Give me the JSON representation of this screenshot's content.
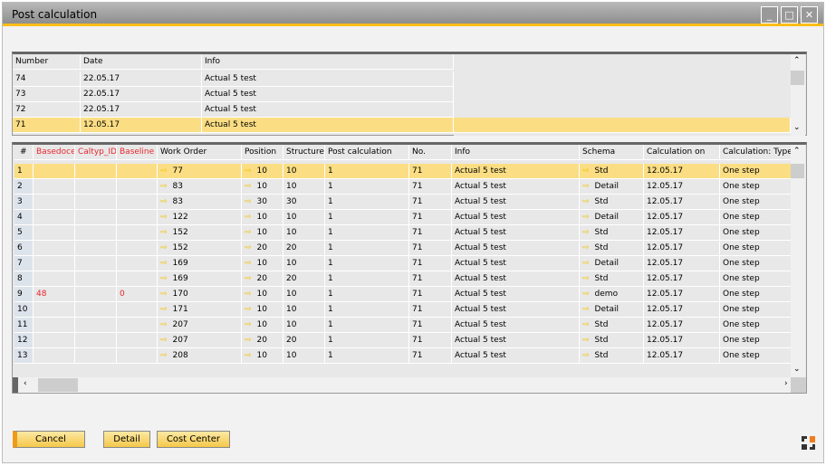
{
  "window": {
    "title": "Post calculation"
  },
  "top_grid": {
    "columns": [
      "Number",
      "Date",
      "Info"
    ],
    "rows": [
      [
        "74",
        "22.05.17",
        "Actual 5 test"
      ],
      [
        "73",
        "22.05.17",
        "Actual 5 test"
      ],
      [
        "72",
        "22.05.17",
        "Actual 5 test"
      ],
      [
        "71",
        "12.05.17",
        "Actual 5 test"
      ]
    ],
    "selected_row": 3
  },
  "bottom_grid": {
    "columns": [
      "#",
      "Basedocer",
      "Caltyp_ID",
      "Baseline",
      "Work Order",
      "Position",
      "Structure",
      "Post calculation",
      "No.",
      "Info",
      "Schema",
      "Calculation on",
      "Calculation: Type"
    ],
    "rows": [
      [
        "1",
        "",
        "",
        "",
        "77",
        "10",
        "10",
        "1",
        "71",
        "Actual 5 test",
        "Std",
        "12.05.17",
        "One step"
      ],
      [
        "2",
        "",
        "",
        "",
        "83",
        "10",
        "10",
        "1",
        "71",
        "Actual 5 test",
        "Detail",
        "12.05.17",
        "One step"
      ],
      [
        "3",
        "",
        "",
        "",
        "83",
        "30",
        "30",
        "1",
        "71",
        "Actual 5 test",
        "Std",
        "12.05.17",
        "One step"
      ],
      [
        "4",
        "",
        "",
        "",
        "122",
        "10",
        "10",
        "1",
        "71",
        "Actual 5 test",
        "Detail",
        "12.05.17",
        "One step"
      ],
      [
        "5",
        "",
        "",
        "",
        "152",
        "10",
        "10",
        "1",
        "71",
        "Actual 5 test",
        "Std",
        "12.05.17",
        "One step"
      ],
      [
        "6",
        "",
        "",
        "",
        "152",
        "20",
        "20",
        "1",
        "71",
        "Actual 5 test",
        "Std",
        "12.05.17",
        "One step"
      ],
      [
        "7",
        "",
        "",
        "",
        "169",
        "10",
        "10",
        "1",
        "71",
        "Actual 5 test",
        "Detail",
        "12.05.17",
        "One step"
      ],
      [
        "8",
        "",
        "",
        "",
        "169",
        "20",
        "20",
        "1",
        "71",
        "Actual 5 test",
        "Std",
        "12.05.17",
        "One step"
      ],
      [
        "9",
        "48",
        "",
        "0",
        "170",
        "10",
        "10",
        "1",
        "71",
        "Actual 5 test",
        "demo",
        "12.05.17",
        "One step"
      ],
      [
        "10",
        "",
        "",
        "",
        "171",
        "10",
        "10",
        "1",
        "71",
        "Actual 5 test",
        "Detail",
        "12.05.17",
        "One step"
      ],
      [
        "11",
        "",
        "",
        "",
        "207",
        "10",
        "10",
        "1",
        "71",
        "Actual 5 test",
        "Std",
        "12.05.17",
        "One step"
      ],
      [
        "12",
        "",
        "",
        "",
        "207",
        "20",
        "20",
        "1",
        "71",
        "Actual 5 test",
        "Std",
        "12.05.17",
        "One step"
      ],
      [
        "13",
        "",
        "",
        "",
        "208",
        "10",
        "10",
        "1",
        "71",
        "Actual 5 test",
        "Std",
        "12.05.17",
        "One step"
      ]
    ],
    "selected_row": 0
  },
  "buttons": {
    "cancel": "Cancel",
    "detail": "Detail",
    "cost_center": "Cost Center"
  },
  "colors": {
    "accent": "#fbbd18",
    "selection": "#fbde84",
    "user_field_header": "#e8282e"
  }
}
